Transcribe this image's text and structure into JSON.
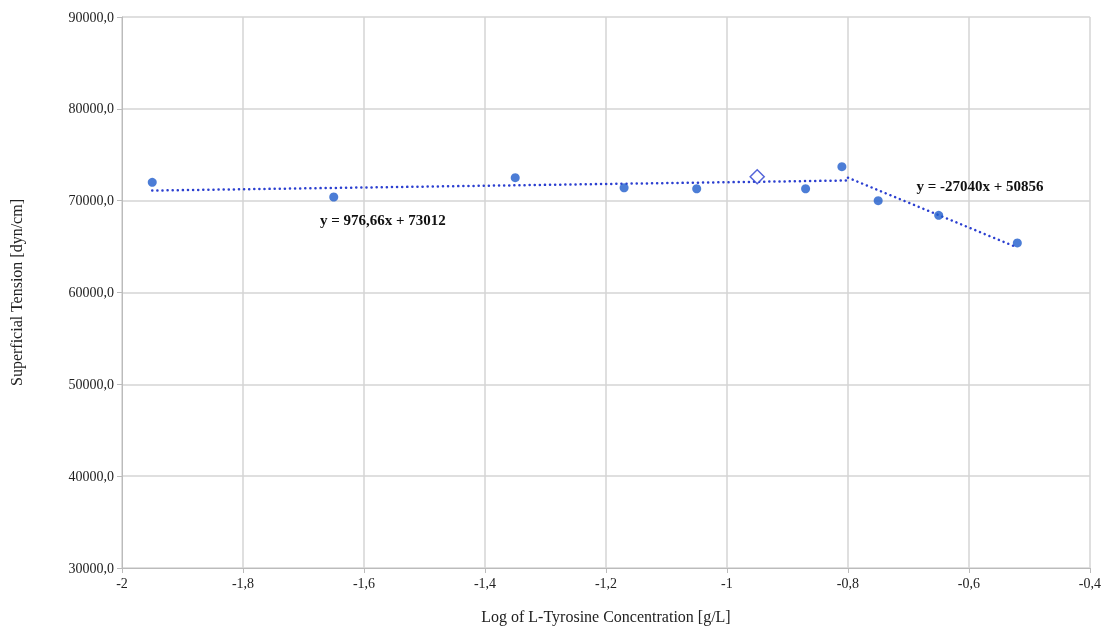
{
  "chart_data": {
    "type": "scatter",
    "xlabel": "Log of L-Tyrosine Concentration [g/L]",
    "ylabel": "Superficial Tension [dyn/cm]",
    "xlim": [
      -2,
      -0.4
    ],
    "xticks": [
      -2,
      {
        "value": -1.8,
        "label": "-1,8"
      },
      {
        "value": -1.6,
        "label": "-1,6"
      },
      {
        "value": -1.4,
        "label": "-1,4"
      },
      {
        "value": -1.2,
        "label": "-1,2"
      },
      -1,
      {
        "value": -0.8,
        "label": "-0,8"
      },
      {
        "value": -0.6,
        "label": "-0,6"
      },
      {
        "value": -0.4,
        "label": "-0,4"
      }
    ],
    "ylim": [
      30000,
      90000
    ],
    "yticks": [
      {
        "value": 30000,
        "label": "30000,0"
      },
      {
        "value": 40000,
        "label": "40000,0"
      },
      {
        "value": 50000,
        "label": "50000,0"
      },
      {
        "value": 60000,
        "label": "60000,0"
      },
      {
        "value": 70000,
        "label": "70000,0"
      },
      {
        "value": 80000,
        "label": "80000,0"
      },
      {
        "value": 90000,
        "label": "90000,0"
      }
    ],
    "grid": true,
    "marker": "circle",
    "series": [
      {
        "type": "line",
        "color": "#2b3fd0",
        "line_style": "dotted",
        "marker": "none",
        "x": [
          -1.95,
          -0.8
        ],
        "values": [
          71100,
          72200
        ]
      },
      {
        "type": "line",
        "color": "#2b3fd0",
        "line_style": "dotted",
        "marker": "none",
        "x": [
          -0.8,
          -0.52
        ],
        "values": [
          72500,
          64900
        ]
      },
      {
        "color": "#1f5ccc",
        "x": [
          -1.95,
          -1.65,
          -1.35,
          -1.17,
          -1.05,
          -0.87,
          -0.81,
          -0.75,
          -0.65,
          -0.52
        ],
        "values": [
          72000,
          70400,
          72500,
          71400,
          71300,
          71300,
          73700,
          70000,
          68400,
          65400
        ]
      },
      {
        "color": "#2b3fd0",
        "marker": "diamond",
        "x": [
          -0.95
        ],
        "values": [
          72600
        ]
      }
    ],
    "annotations": [
      "y = 976,66x + 73012",
      "y = -27040x + 50856"
    ]
  }
}
